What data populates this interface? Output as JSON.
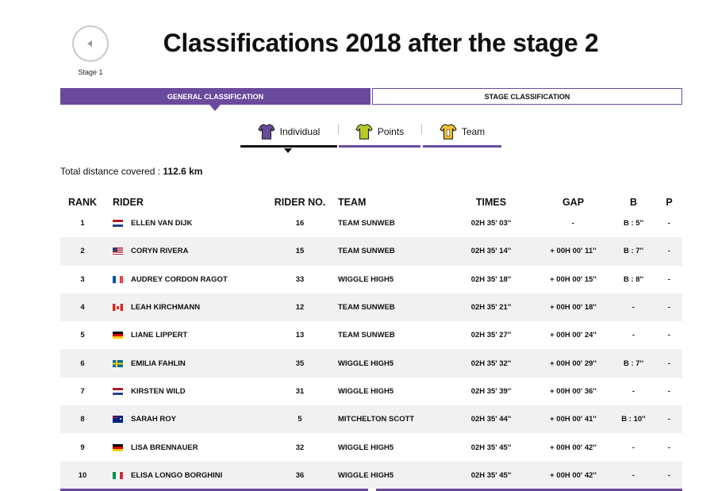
{
  "nav": {
    "prev_stage_label": "Stage 1"
  },
  "page_title": "Classifications 2018 after the stage 2",
  "classification_tabs": [
    {
      "label": "GENERAL CLASSIFICATION",
      "active": true
    },
    {
      "label": "STAGE CLASSIFICATION",
      "active": false
    }
  ],
  "sub_tabs": [
    {
      "label": "Individual",
      "icon": "purple-jersey-icon",
      "color": "#6a4a9c",
      "active": true
    },
    {
      "label": "Points",
      "icon": "green-jersey-icon",
      "color": "#b8c92a",
      "active": false
    },
    {
      "label": "Team",
      "icon": "yellow-jersey-icon",
      "color": "#f5c431",
      "active": false
    }
  ],
  "distance": {
    "label": "Total distance covered :",
    "value": "112.6 km"
  },
  "table": {
    "headers": {
      "rank": "RANK",
      "rider": "RIDER",
      "rider_no": "RIDER NO.",
      "team": "TEAM",
      "times": "TIMES",
      "gap": "GAP",
      "b": "B",
      "p": "P"
    },
    "rows": [
      {
        "rank": "1",
        "flag": "nl",
        "rider": "ELLEN VAN DIJK",
        "no": "16",
        "team": "TEAM SUNWEB",
        "time": "02H 35' 03''",
        "gap": "-",
        "b": "B : 5''",
        "p": "-"
      },
      {
        "rank": "2",
        "flag": "us",
        "rider": "CORYN RIVERA",
        "no": "15",
        "team": "TEAM SUNWEB",
        "time": "02H 35' 14''",
        "gap": "+ 00H 00' 11''",
        "b": "B : 7''",
        "p": "-"
      },
      {
        "rank": "3",
        "flag": "fr",
        "rider": "AUDREY CORDON RAGOT",
        "no": "33",
        "team": "WIGGLE HIGH5",
        "time": "02H 35' 18''",
        "gap": "+ 00H 00' 15''",
        "b": "B : 8''",
        "p": "-"
      },
      {
        "rank": "4",
        "flag": "ca",
        "rider": "LEAH KIRCHMANN",
        "no": "12",
        "team": "TEAM SUNWEB",
        "time": "02H 35' 21''",
        "gap": "+ 00H 00' 18''",
        "b": "-",
        "p": "-"
      },
      {
        "rank": "5",
        "flag": "de",
        "rider": "LIANE LIPPERT",
        "no": "13",
        "team": "TEAM SUNWEB",
        "time": "02H 35' 27''",
        "gap": "+ 00H 00' 24''",
        "b": "-",
        "p": "-"
      },
      {
        "rank": "6",
        "flag": "se",
        "rider": "EMILIA FAHLIN",
        "no": "35",
        "team": "WIGGLE HIGH5",
        "time": "02H 35' 32''",
        "gap": "+ 00H 00' 29''",
        "b": "B : 7''",
        "p": "-"
      },
      {
        "rank": "7",
        "flag": "nl",
        "rider": "KIRSTEN WILD",
        "no": "31",
        "team": "WIGGLE HIGH5",
        "time": "02H 35' 39''",
        "gap": "+ 00H 00' 36''",
        "b": "-",
        "p": "-"
      },
      {
        "rank": "8",
        "flag": "au",
        "rider": "SARAH ROY",
        "no": "5",
        "team": "MITCHELTON SCOTT",
        "time": "02H 35' 44''",
        "gap": "+ 00H 00' 41''",
        "b": "B : 10''",
        "p": "-"
      },
      {
        "rank": "9",
        "flag": "de",
        "rider": "LISA BRENNAUER",
        "no": "32",
        "team": "WIGGLE HIGH5",
        "time": "02H 35' 45''",
        "gap": "+ 00H 00' 42''",
        "b": "-",
        "p": "-"
      },
      {
        "rank": "10",
        "flag": "it",
        "rider": "ELISA LONGO BORGHINI",
        "no": "36",
        "team": "WIGGLE HIGH5",
        "time": "02H 35' 45''",
        "gap": "+ 00H 00' 42''",
        "b": "-",
        "p": "-"
      }
    ]
  },
  "colors": {
    "accent": "#6a4a9c",
    "row_alt": "#f1f1f1"
  }
}
